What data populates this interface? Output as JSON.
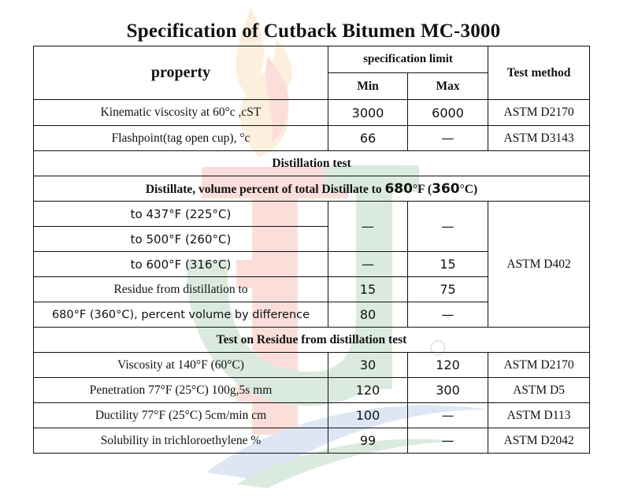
{
  "title": "Specification of Cutback Bitumen MC-3000",
  "headers": {
    "property": "property",
    "spec_limit": "specification limit",
    "min": "Min",
    "max": "Max",
    "test_method": "Test method"
  },
  "rows_top": [
    {
      "property": "Kinematic viscosity at 60°c ,cST",
      "min": "3000",
      "max": "6000",
      "method": "ASTM D2170"
    },
    {
      "property": "Flashpoint(tag open cup), °c",
      "min": "66",
      "max": "—",
      "method": "ASTM D3143"
    }
  ],
  "section_distillation": "Distillation test",
  "distillate": {
    "prefix": "Distillate, volume percent of total Distillate to ",
    "temp_f": "680",
    "unit_f": "°F (",
    "temp_c": "360",
    "unit_c": "°C)"
  },
  "distillation_rows": [
    {
      "property": "to 437°F (225°C)"
    },
    {
      "property": "to 500°F (260°C)"
    },
    {
      "property": "to 600°F (316°C)",
      "min": "—",
      "max": "15"
    },
    {
      "property": "Residue from distillation to",
      "min": "15",
      "max": "75"
    },
    {
      "property": "680°F (360°C), percent volume by difference",
      "min": "80",
      "max": "—"
    }
  ],
  "distillation_merged": {
    "min": "—",
    "max": "—",
    "method": "ASTM D402"
  },
  "section_residue": "Test on Residue from distillation test",
  "residue_rows": [
    {
      "property": "Viscosity at 140°F (60°C)",
      "min": "30",
      "max": "120",
      "method": "ASTM D2170"
    },
    {
      "property": "Penetration 77°F (25°C) 100g,5s mm",
      "min": "120",
      "max": "300",
      "method": "ASTM D5"
    },
    {
      "property": "Ductility 77°F (25°C) 5cm/min cm",
      "min": "100",
      "max": "—",
      "method": "ASTM D113"
    },
    {
      "property": "Solubility in trichloroethylene %",
      "min": "99",
      "max": "—",
      "method": "ASTM D2042"
    }
  ],
  "colors": {
    "watermark_red": "#e8402a",
    "watermark_green": "#2f8a4a",
    "watermark_blue": "#3d6fb6",
    "watermark_flame": "#f2a23a"
  }
}
